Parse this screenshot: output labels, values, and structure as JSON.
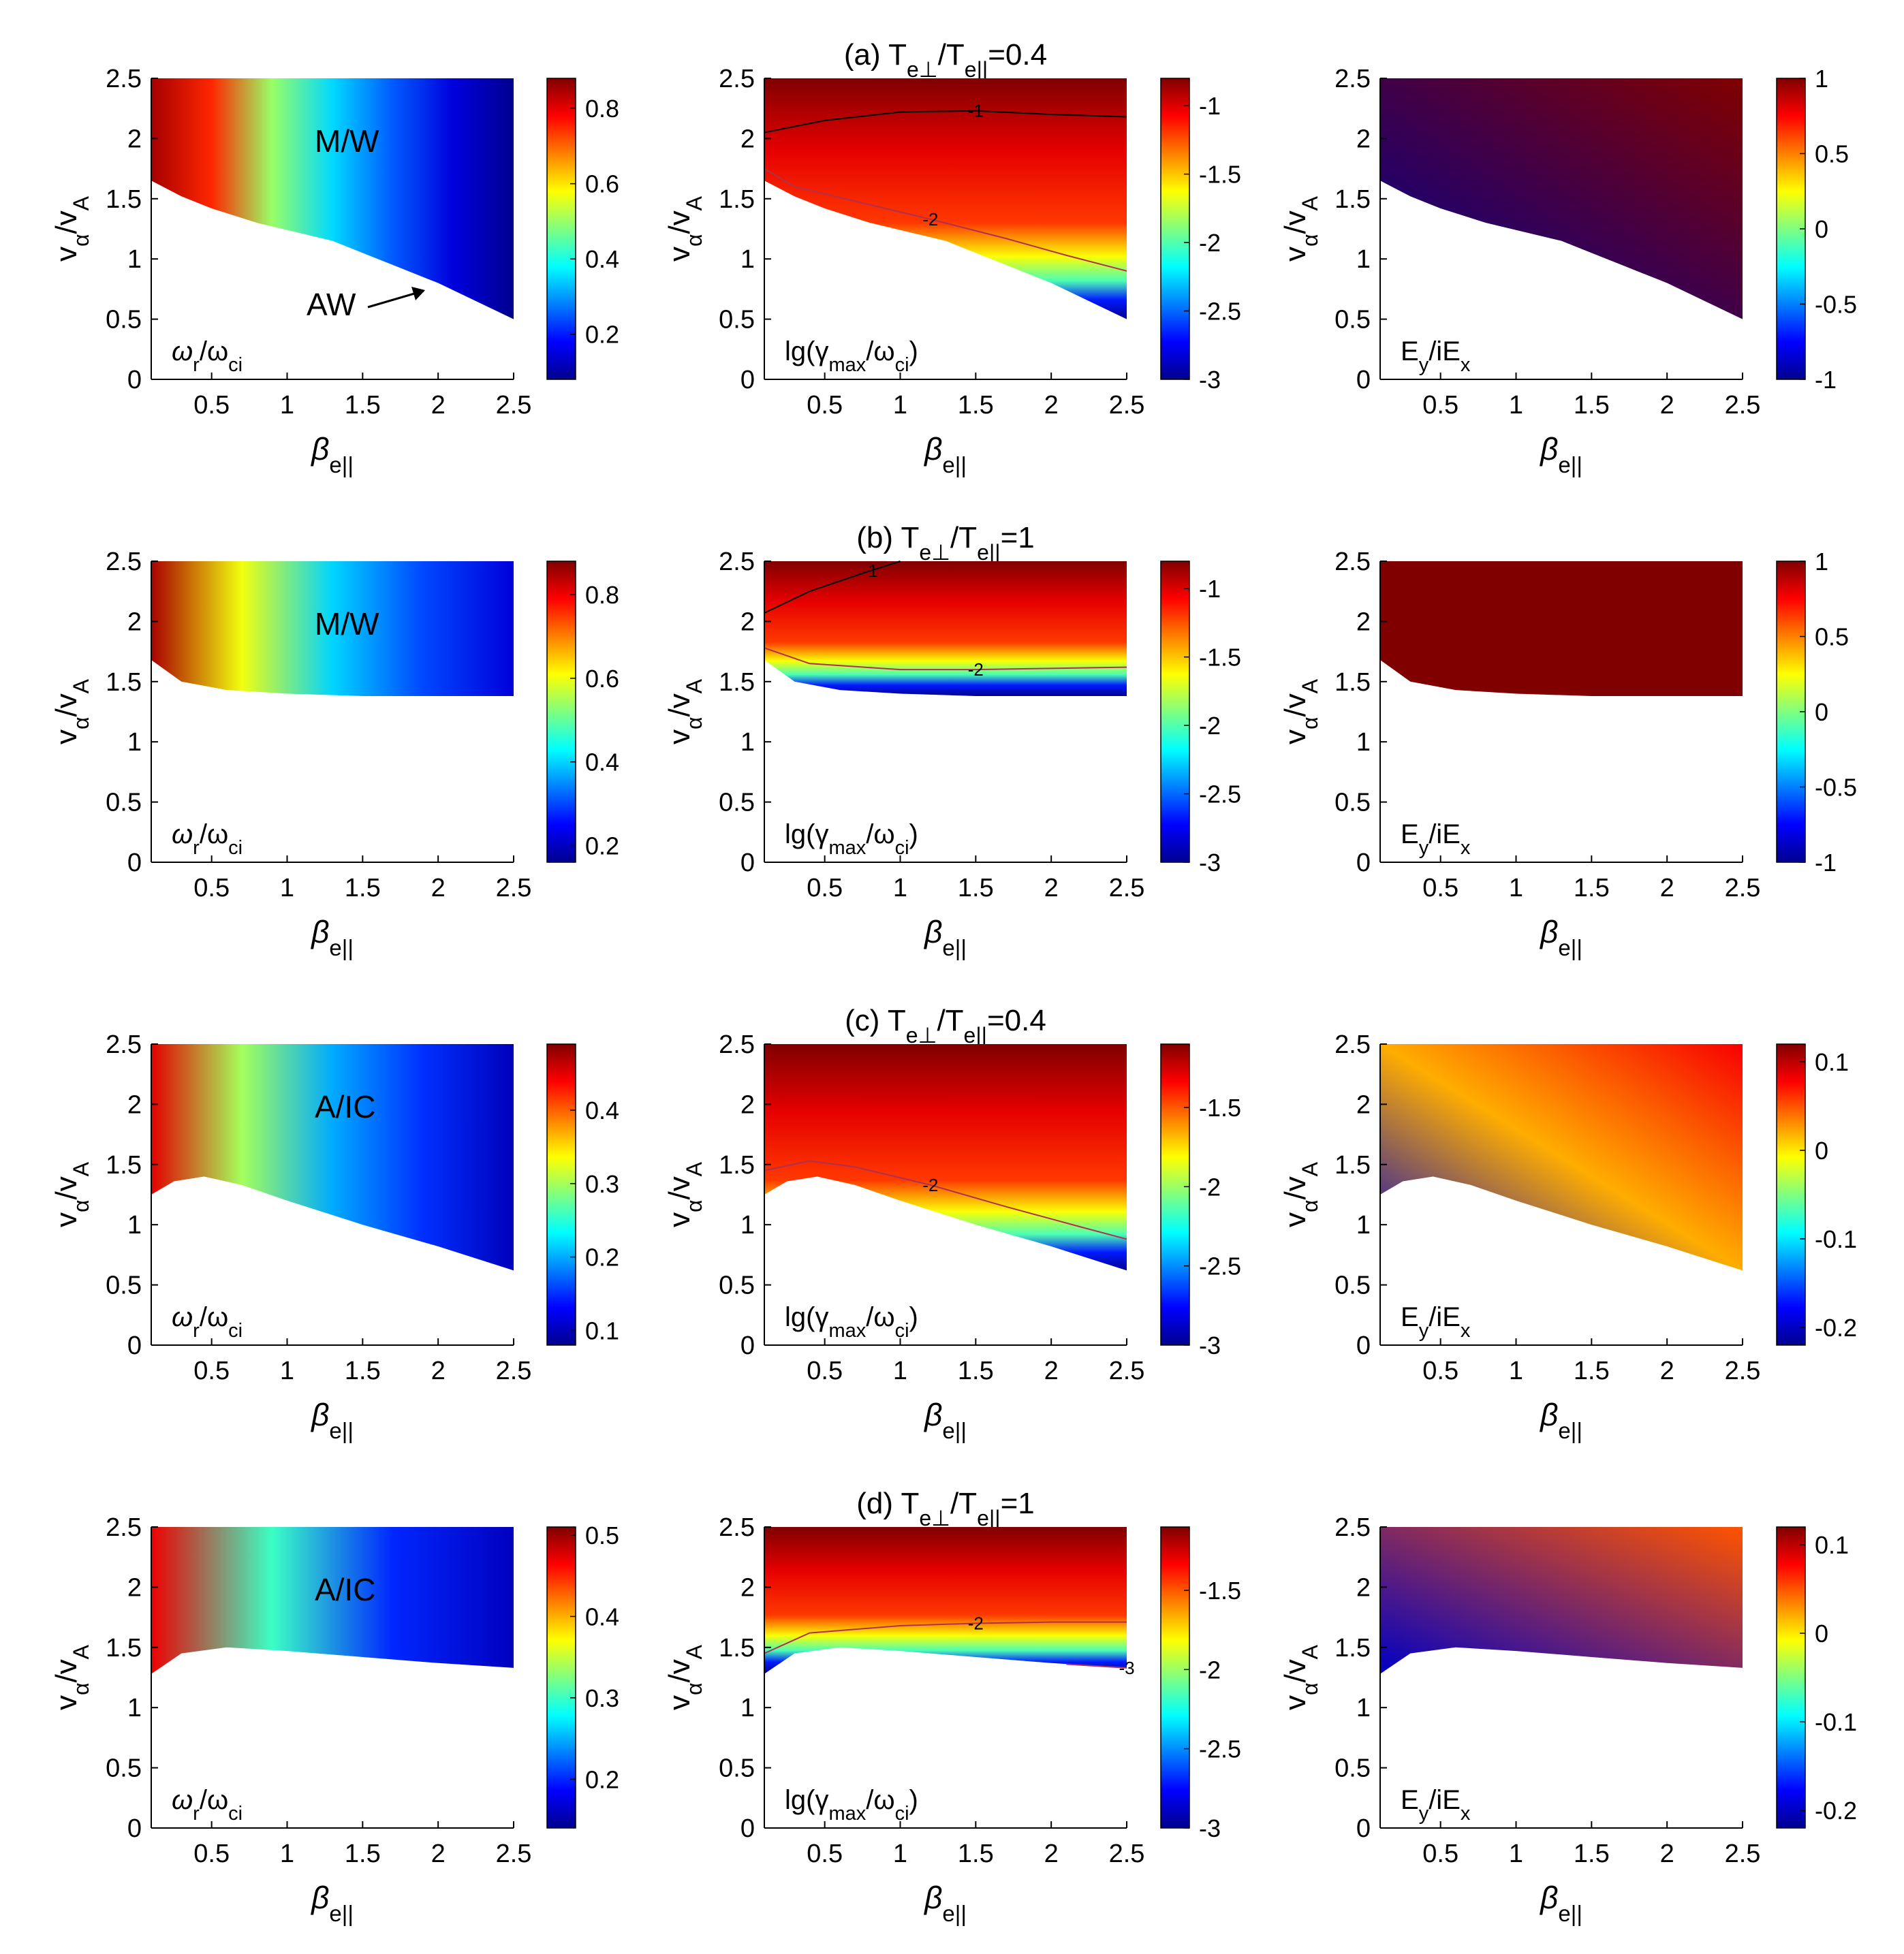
{
  "colormap": [
    "#00008f",
    "#0000ff",
    "#0080ff",
    "#00ffff",
    "#80ff80",
    "#ffff00",
    "#ff8000",
    "#ff0000",
    "#800000"
  ],
  "chart_data": {
    "type": "heatmap",
    "xlabel": {
      "base": "β",
      "sub": "e||"
    },
    "ylabel": {
      "base": "v",
      "sub1": "α",
      "mid": "/v",
      "sub2": "A"
    },
    "xlim": [
      0.1,
      2.5
    ],
    "ylim": [
      0,
      2.5
    ],
    "xticks": [
      "0.5",
      "1",
      "1.5",
      "2",
      "2.5"
    ],
    "yticks": [
      "0",
      "0.5",
      "1",
      "1.5",
      "2",
      "2.5"
    ],
    "panel_labels": {
      "freq": {
        "pre": "ω",
        "s1": "r",
        "mid": "/ω",
        "s2": "ci"
      },
      "growth": {
        "pre": "lg(γ",
        "s1": "max",
        "mid": "/ω",
        "s2": "ci",
        "post": ")"
      },
      "pol": {
        "pre": "E",
        "s1": "y",
        "mid": "/iE",
        "s2": "x"
      }
    },
    "rows": [
      {
        "title": {
          "pre": "(a) T",
          "s1": "e⊥",
          "mid": "/T",
          "s2": "e||",
          "post": "=0.4"
        },
        "region_label": "M/W",
        "extra_label": "AW",
        "boundary": [
          [
            0.1,
            1.65
          ],
          [
            0.3,
            1.52
          ],
          [
            0.5,
            1.42
          ],
          [
            0.8,
            1.3
          ],
          [
            1.0,
            1.24
          ],
          [
            1.3,
            1.15
          ],
          [
            1.5,
            1.05
          ],
          [
            1.7,
            0.95
          ],
          [
            2.0,
            0.8
          ],
          [
            2.3,
            0.62
          ],
          [
            2.5,
            0.5
          ]
        ],
        "panels": [
          {
            "kind": "freq",
            "cbar_ticks": [
              "0.2",
              "0.4",
              "0.6",
              "0.8"
            ],
            "cbar_range": [
              0.08,
              0.88
            ],
            "sample_values": [
              0.85,
              0.75,
              0.5,
              0.35,
              0.25,
              0.15,
              0.08
            ]
          },
          {
            "kind": "growth",
            "cbar_ticks": [
              "-1",
              "-1.5",
              "-2",
              "-2.5",
              "-3"
            ],
            "cbar_range": [
              -3,
              -0.8
            ],
            "contours": [
              {
                "level": "-1",
                "points": [
                  [
                    0.1,
                    2.05
                  ],
                  [
                    0.5,
                    2.15
                  ],
                  [
                    1.0,
                    2.22
                  ],
                  [
                    1.5,
                    2.23
                  ],
                  [
                    2.0,
                    2.2
                  ],
                  [
                    2.5,
                    2.18
                  ]
                ]
              },
              {
                "level": "-2",
                "points": [
                  [
                    0.1,
                    1.75
                  ],
                  [
                    0.3,
                    1.6
                  ],
                  [
                    0.7,
                    1.48
                  ],
                  [
                    1.2,
                    1.33
                  ],
                  [
                    1.7,
                    1.17
                  ],
                  [
                    2.1,
                    1.03
                  ],
                  [
                    2.5,
                    0.9
                  ]
                ]
              }
            ]
          },
          {
            "kind": "pol",
            "cbar_ticks": [
              "1",
              "0.5",
              "0",
              "-0.5",
              "-1"
            ],
            "cbar_range": [
              -1,
              1
            ],
            "sample_values": [
              1,
              -1
            ]
          }
        ]
      },
      {
        "title": {
          "pre": "(b) T",
          "s1": "e⊥",
          "mid": "/T",
          "s2": "e||",
          "post": "=1"
        },
        "region_label": "M/W",
        "boundary": [
          [
            0.1,
            1.68
          ],
          [
            0.3,
            1.5
          ],
          [
            0.6,
            1.43
          ],
          [
            1.0,
            1.4
          ],
          [
            1.5,
            1.38
          ],
          [
            2.0,
            1.38
          ],
          [
            2.5,
            1.38
          ]
        ],
        "panels": [
          {
            "kind": "freq",
            "cbar_ticks": [
              "0.2",
              "0.4",
              "0.6",
              "0.8"
            ],
            "cbar_range": [
              0.16,
              0.88
            ],
            "sample_values": [
              0.85,
              0.6,
              0.4,
              0.3,
              0.22
            ]
          },
          {
            "kind": "growth",
            "cbar_ticks": [
              "-1",
              "-1.5",
              "-2",
              "-2.5",
              "-3"
            ],
            "cbar_range": [
              -3,
              -0.8
            ],
            "contours": [
              {
                "level": "-1",
                "points": [
                  [
                    0.1,
                    2.07
                  ],
                  [
                    0.4,
                    2.25
                  ],
                  [
                    0.8,
                    2.42
                  ],
                  [
                    1.0,
                    2.5
                  ]
                ]
              },
              {
                "level": "-2",
                "points": [
                  [
                    0.1,
                    1.78
                  ],
                  [
                    0.4,
                    1.65
                  ],
                  [
                    1.0,
                    1.6
                  ],
                  [
                    1.5,
                    1.6
                  ],
                  [
                    2.0,
                    1.61
                  ],
                  [
                    2.5,
                    1.62
                  ]
                ]
              }
            ]
          },
          {
            "kind": "pol",
            "cbar_ticks": [
              "1",
              "0.5",
              "0",
              "-0.5",
              "-1"
            ],
            "cbar_range": [
              -1,
              1
            ],
            "sample_values": [
              1
            ]
          }
        ]
      },
      {
        "title": {
          "pre": "(c) T",
          "s1": "e⊥",
          "mid": "/T",
          "s2": "e||",
          "post": "=0.4"
        },
        "region_label": "A/IC",
        "boundary": [
          [
            0.1,
            1.25
          ],
          [
            0.25,
            1.36
          ],
          [
            0.45,
            1.4
          ],
          [
            0.7,
            1.33
          ],
          [
            1.0,
            1.2
          ],
          [
            1.5,
            1.0
          ],
          [
            2.0,
            0.82
          ],
          [
            2.5,
            0.62
          ]
        ],
        "panels": [
          {
            "kind": "freq",
            "cbar_ticks": [
              "0.1",
              "0.2",
              "0.3",
              "0.4"
            ],
            "cbar_range": [
              0.08,
              0.49
            ],
            "sample_values": [
              0.45,
              0.3,
              0.2,
              0.15,
              0.1
            ]
          },
          {
            "kind": "growth",
            "cbar_ticks": [
              "-1.5",
              "-2",
              "-2.5",
              "-3"
            ],
            "cbar_range": [
              -3,
              -1.1
            ],
            "contours": [
              {
                "level": "-2",
                "points": [
                  [
                    0.1,
                    1.45
                  ],
                  [
                    0.4,
                    1.53
                  ],
                  [
                    0.7,
                    1.48
                  ],
                  [
                    1.2,
                    1.33
                  ],
                  [
                    1.7,
                    1.15
                  ],
                  [
                    2.2,
                    0.98
                  ],
                  [
                    2.5,
                    0.88
                  ]
                ]
              }
            ]
          },
          {
            "kind": "pol",
            "cbar_ticks": [
              "0.1",
              "0",
              "-0.1",
              "-0.2"
            ],
            "cbar_range": [
              -0.22,
              0.12
            ],
            "sample_values": [
              0.08,
              0.02,
              -0.2
            ]
          }
        ]
      },
      {
        "title": {
          "pre": "(d) T",
          "s1": "e⊥",
          "mid": "/T",
          "s2": "e||",
          "post": "=1"
        },
        "region_label": "A/IC",
        "boundary": [
          [
            0.1,
            1.28
          ],
          [
            0.3,
            1.45
          ],
          [
            0.6,
            1.5
          ],
          [
            1.0,
            1.47
          ],
          [
            1.5,
            1.42
          ],
          [
            2.0,
            1.37
          ],
          [
            2.5,
            1.33
          ]
        ],
        "panels": [
          {
            "kind": "freq",
            "cbar_ticks": [
              "0.2",
              "0.3",
              "0.4",
              "0.5"
            ],
            "cbar_range": [
              0.14,
              0.51
            ],
            "sample_values": [
              0.47,
              0.3,
              0.2,
              0.16
            ]
          },
          {
            "kind": "growth",
            "cbar_ticks": [
              "-1.5",
              "-2",
              "-2.5",
              "-3"
            ],
            "cbar_range": [
              -3,
              -1.1
            ],
            "contours": [
              {
                "level": "-2",
                "points": [
                  [
                    0.1,
                    1.45
                  ],
                  [
                    0.4,
                    1.62
                  ],
                  [
                    1.0,
                    1.68
                  ],
                  [
                    1.5,
                    1.7
                  ],
                  [
                    2.0,
                    1.71
                  ],
                  [
                    2.5,
                    1.71
                  ]
                ]
              },
              {
                "level": "-3",
                "points": [
                  [
                    2.1,
                    1.36
                  ],
                  [
                    2.5,
                    1.33
                  ]
                ]
              }
            ]
          },
          {
            "kind": "pol",
            "cbar_ticks": [
              "0.1",
              "0",
              "-0.1",
              "-0.2"
            ],
            "cbar_range": [
              -0.22,
              0.12
            ],
            "sample_values": [
              0.05,
              -0.2
            ]
          }
        ]
      }
    ]
  }
}
